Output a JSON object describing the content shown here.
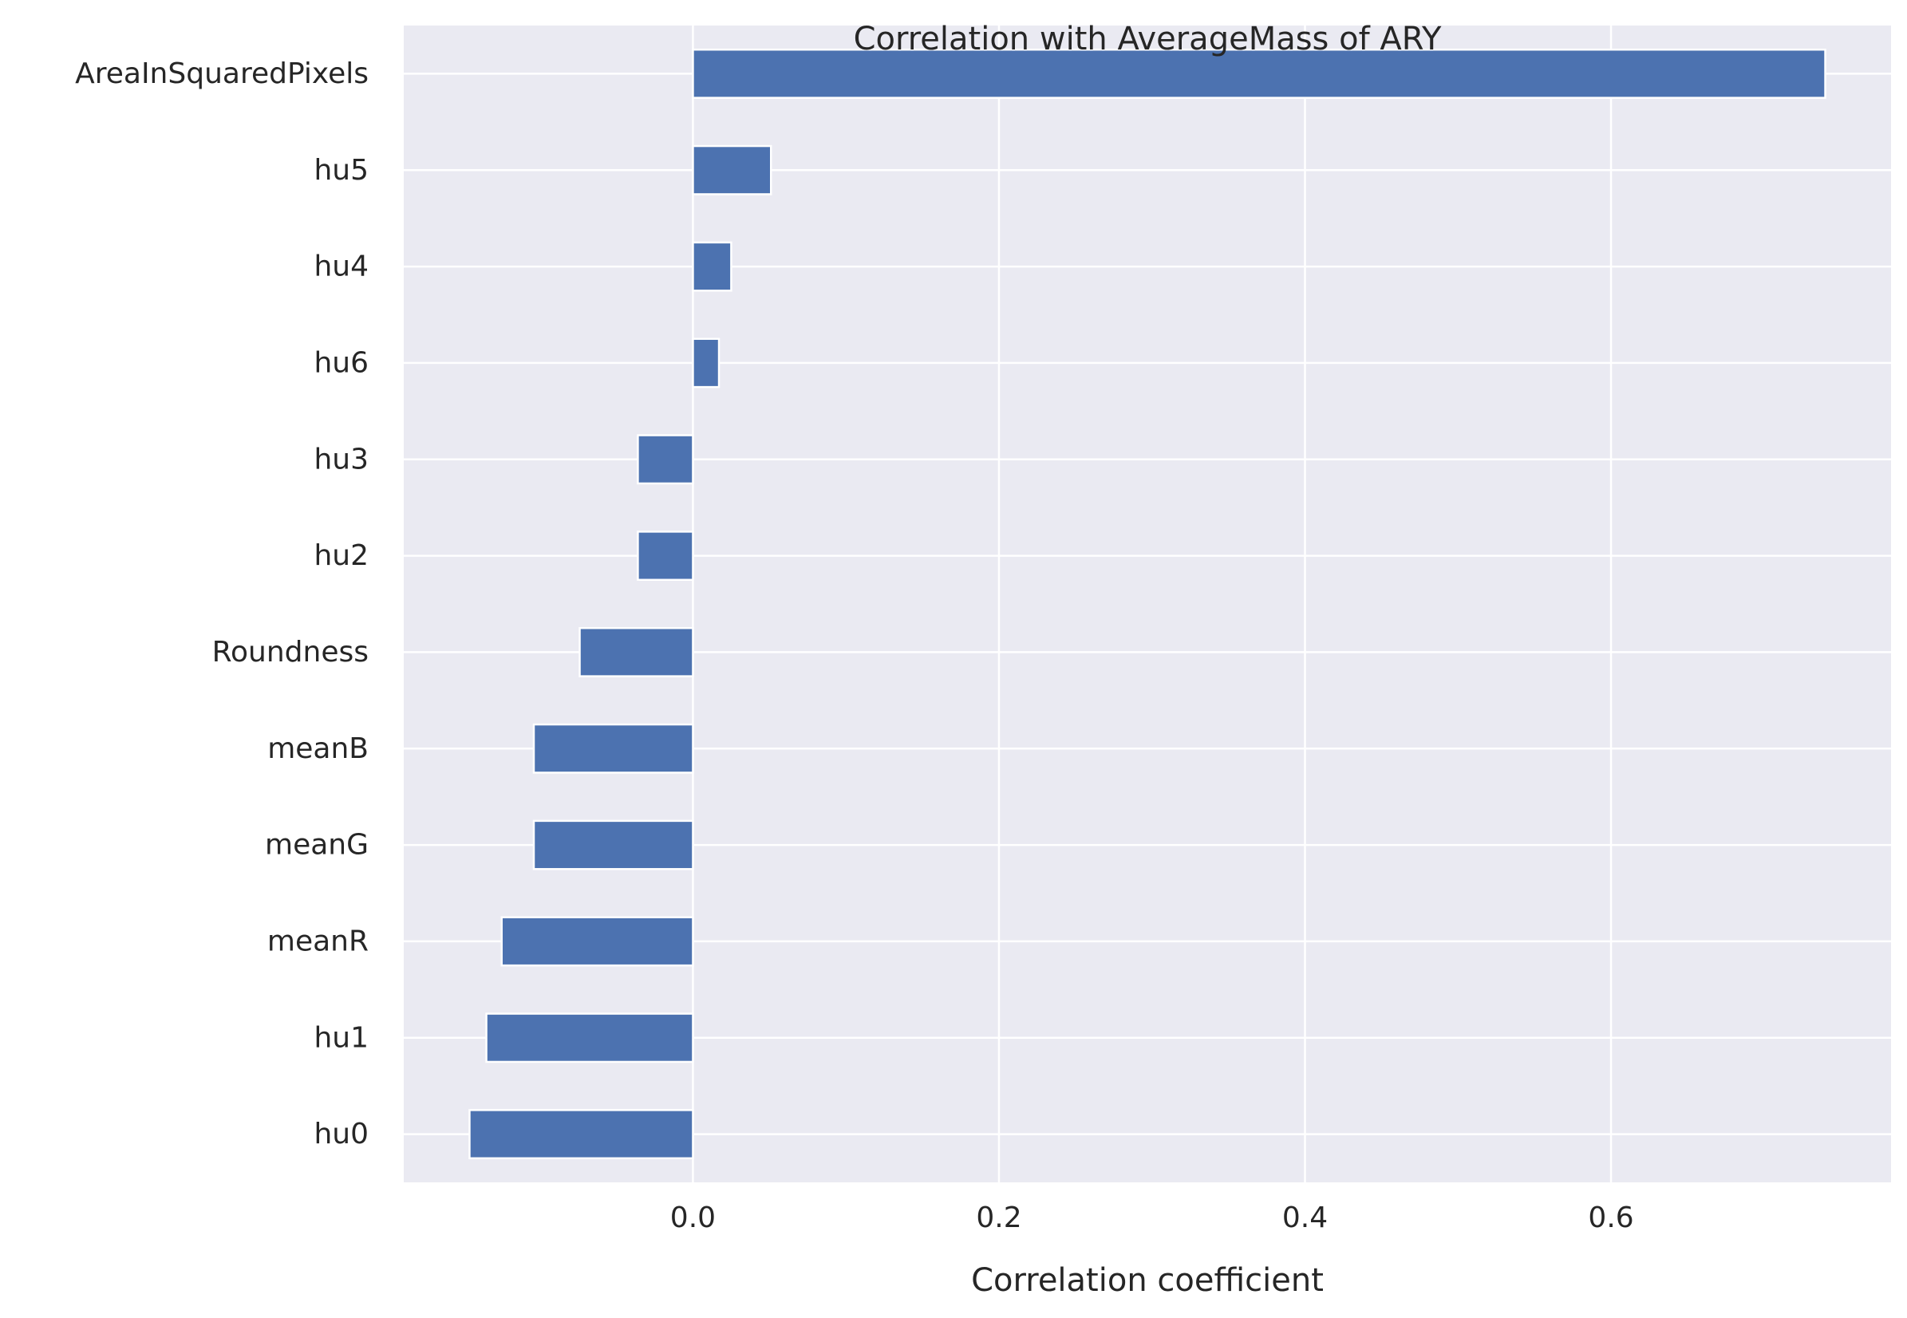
{
  "chart_data": {
    "type": "bar",
    "orientation": "horizontal",
    "title": "Correlation with AverageMass of ARY",
    "xlabel": "Correlation coefficient",
    "ylabel": "",
    "categories": [
      "AreaInSquaredPixels",
      "hu5",
      "hu4",
      "hu6",
      "hu3",
      "hu2",
      "Roundness",
      "meanB",
      "meanG",
      "meanR",
      "hu1",
      "hu0"
    ],
    "values": [
      0.74,
      0.051,
      0.025,
      0.017,
      -0.036,
      -0.036,
      -0.074,
      -0.104,
      -0.104,
      -0.125,
      -0.135,
      -0.146
    ],
    "xlim": [
      -0.189,
      0.783
    ],
    "xticks": [
      0.0,
      0.2,
      0.4,
      0.6
    ],
    "xtick_labels": [
      "0.0",
      "0.2",
      "0.4",
      "0.6"
    ],
    "grid": true,
    "legend": "none",
    "colors": {
      "bar": "#4c72b0",
      "background": "#eaeaf2",
      "grid": "#ffffff"
    }
  }
}
